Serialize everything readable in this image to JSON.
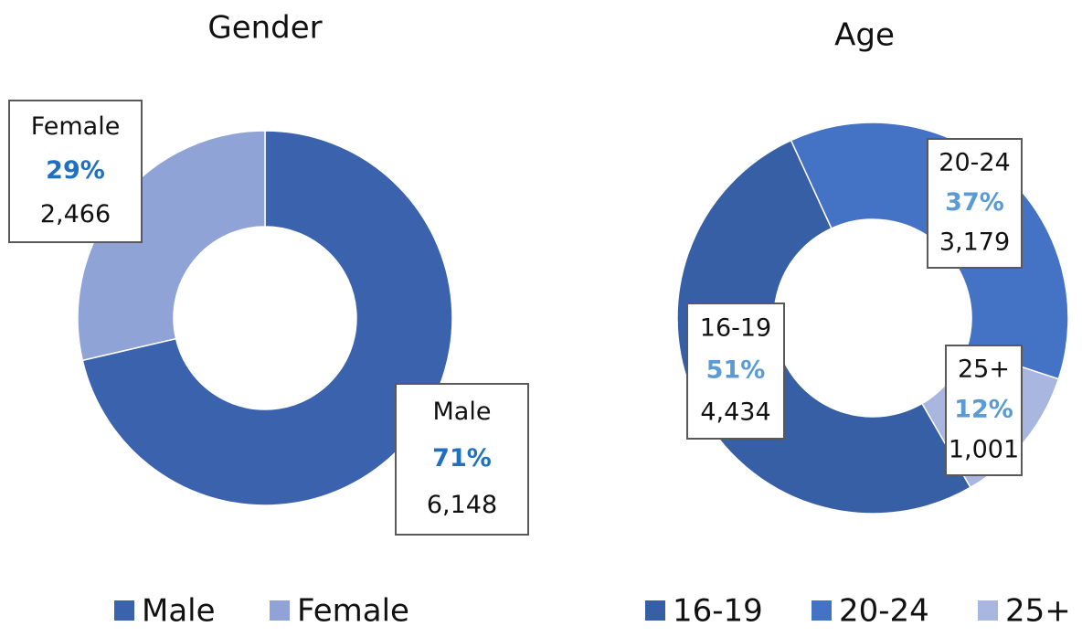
{
  "chart_data": [
    {
      "type": "donut",
      "title": "Gender",
      "categories": [
        "Male",
        "Female"
      ],
      "values": [
        6148,
        2466
      ],
      "value_labels": [
        "6,148",
        "2,466"
      ],
      "percent_labels": [
        "71%",
        "29%"
      ],
      "colors": [
        "#3a62ad",
        "#8fa3d6"
      ],
      "start_angle": 0,
      "legend": "bottom"
    },
    {
      "type": "donut",
      "title": "Age",
      "categories": [
        "16-19",
        "20-24",
        "25+"
      ],
      "values": [
        4434,
        3179,
        1001
      ],
      "value_labels": [
        "4,434",
        "3,179",
        "1,001"
      ],
      "percent_labels": [
        "51%",
        "37%",
        "12%"
      ],
      "colors": [
        "#365fa6",
        "#4472c4",
        "#a9b6df"
      ],
      "start_angle": 150,
      "legend": "bottom"
    }
  ]
}
